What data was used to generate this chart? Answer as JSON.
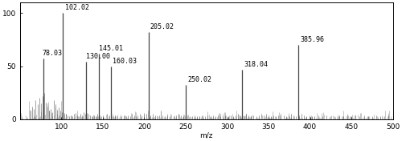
{
  "labeled_peaks": [
    {
      "mz": 78.03,
      "intensity": 57,
      "label": "78.03"
    },
    {
      "mz": 102.02,
      "intensity": 100,
      "label": "102.02"
    },
    {
      "mz": 130.0,
      "intensity": 54,
      "label": "130.00"
    },
    {
      "mz": 145.01,
      "intensity": 62,
      "label": "145.01"
    },
    {
      "mz": 160.03,
      "intensity": 50,
      "label": "160.03"
    },
    {
      "mz": 205.02,
      "intensity": 82,
      "label": "205.02"
    },
    {
      "mz": 250.02,
      "intensity": 32,
      "label": "250.02"
    },
    {
      "mz": 318.04,
      "intensity": 47,
      "label": "318.04"
    },
    {
      "mz": 385.96,
      "intensity": 70,
      "label": "385.96"
    }
  ],
  "small_peaks": [
    {
      "mz": 63,
      "intensity": 8
    },
    {
      "mz": 65,
      "intensity": 12
    },
    {
      "mz": 67,
      "intensity": 10
    },
    {
      "mz": 69,
      "intensity": 18
    },
    {
      "mz": 71,
      "intensity": 14
    },
    {
      "mz": 73,
      "intensity": 20
    },
    {
      "mz": 75,
      "intensity": 15
    },
    {
      "mz": 77,
      "intensity": 22
    },
    {
      "mz": 79,
      "intensity": 25
    },
    {
      "mz": 81,
      "intensity": 16
    },
    {
      "mz": 83,
      "intensity": 12
    },
    {
      "mz": 85,
      "intensity": 8
    },
    {
      "mz": 87,
      "intensity": 10
    },
    {
      "mz": 89,
      "intensity": 7
    },
    {
      "mz": 91,
      "intensity": 18
    },
    {
      "mz": 93,
      "intensity": 14
    },
    {
      "mz": 95,
      "intensity": 9
    },
    {
      "mz": 97,
      "intensity": 11
    },
    {
      "mz": 99,
      "intensity": 8
    },
    {
      "mz": 101,
      "intensity": 7
    },
    {
      "mz": 103,
      "intensity": 6
    },
    {
      "mz": 105,
      "intensity": 5
    },
    {
      "mz": 107,
      "intensity": 4
    },
    {
      "mz": 109,
      "intensity": 3
    },
    {
      "mz": 111,
      "intensity": 4
    },
    {
      "mz": 113,
      "intensity": 3
    },
    {
      "mz": 115,
      "intensity": 5
    },
    {
      "mz": 117,
      "intensity": 6
    },
    {
      "mz": 119,
      "intensity": 4
    },
    {
      "mz": 121,
      "intensity": 3
    },
    {
      "mz": 123,
      "intensity": 5
    },
    {
      "mz": 125,
      "intensity": 4
    },
    {
      "mz": 127,
      "intensity": 7
    },
    {
      "mz": 129,
      "intensity": 5
    },
    {
      "mz": 131,
      "intensity": 6
    },
    {
      "mz": 133,
      "intensity": 5
    },
    {
      "mz": 135,
      "intensity": 4
    },
    {
      "mz": 137,
      "intensity": 3
    },
    {
      "mz": 139,
      "intensity": 4
    },
    {
      "mz": 141,
      "intensity": 3
    },
    {
      "mz": 143,
      "intensity": 5
    },
    {
      "mz": 146,
      "intensity": 4
    },
    {
      "mz": 148,
      "intensity": 3
    },
    {
      "mz": 150,
      "intensity": 4
    },
    {
      "mz": 155,
      "intensity": 5
    },
    {
      "mz": 158,
      "intensity": 4
    },
    {
      "mz": 162,
      "intensity": 3
    },
    {
      "mz": 165,
      "intensity": 4
    },
    {
      "mz": 168,
      "intensity": 3
    },
    {
      "mz": 172,
      "intensity": 3
    },
    {
      "mz": 175,
      "intensity": 4
    },
    {
      "mz": 178,
      "intensity": 3
    },
    {
      "mz": 180,
      "intensity": 4
    },
    {
      "mz": 183,
      "intensity": 3
    },
    {
      "mz": 185,
      "intensity": 5
    },
    {
      "mz": 188,
      "intensity": 4
    },
    {
      "mz": 190,
      "intensity": 3
    },
    {
      "mz": 192,
      "intensity": 4
    },
    {
      "mz": 195,
      "intensity": 5
    },
    {
      "mz": 197,
      "intensity": 4
    },
    {
      "mz": 200,
      "intensity": 6
    },
    {
      "mz": 202,
      "intensity": 5
    },
    {
      "mz": 207,
      "intensity": 4
    },
    {
      "mz": 210,
      "intensity": 5
    },
    {
      "mz": 213,
      "intensity": 4
    },
    {
      "mz": 216,
      "intensity": 3
    },
    {
      "mz": 218,
      "intensity": 4
    },
    {
      "mz": 220,
      "intensity": 8
    },
    {
      "mz": 222,
      "intensity": 4
    },
    {
      "mz": 225,
      "intensity": 3
    },
    {
      "mz": 228,
      "intensity": 4
    },
    {
      "mz": 231,
      "intensity": 3
    },
    {
      "mz": 235,
      "intensity": 3
    },
    {
      "mz": 238,
      "intensity": 4
    },
    {
      "mz": 241,
      "intensity": 5
    },
    {
      "mz": 244,
      "intensity": 4
    },
    {
      "mz": 247,
      "intensity": 3
    },
    {
      "mz": 252,
      "intensity": 4
    },
    {
      "mz": 255,
      "intensity": 3
    },
    {
      "mz": 258,
      "intensity": 3
    },
    {
      "mz": 261,
      "intensity": 4
    },
    {
      "mz": 264,
      "intensity": 3
    },
    {
      "mz": 267,
      "intensity": 3
    },
    {
      "mz": 270,
      "intensity": 4
    },
    {
      "mz": 273,
      "intensity": 3
    },
    {
      "mz": 276,
      "intensity": 4
    },
    {
      "mz": 280,
      "intensity": 3
    },
    {
      "mz": 283,
      "intensity": 4
    },
    {
      "mz": 286,
      "intensity": 3
    },
    {
      "mz": 289,
      "intensity": 4
    },
    {
      "mz": 292,
      "intensity": 3
    },
    {
      "mz": 295,
      "intensity": 3
    },
    {
      "mz": 298,
      "intensity": 4
    },
    {
      "mz": 301,
      "intensity": 3
    },
    {
      "mz": 304,
      "intensity": 4
    },
    {
      "mz": 307,
      "intensity": 3
    },
    {
      "mz": 310,
      "intensity": 4
    },
    {
      "mz": 313,
      "intensity": 5
    },
    {
      "mz": 316,
      "intensity": 4
    },
    {
      "mz": 320,
      "intensity": 4
    },
    {
      "mz": 323,
      "intensity": 5
    },
    {
      "mz": 326,
      "intensity": 4
    },
    {
      "mz": 329,
      "intensity": 3
    },
    {
      "mz": 332,
      "intensity": 4
    },
    {
      "mz": 335,
      "intensity": 3
    },
    {
      "mz": 338,
      "intensity": 4
    },
    {
      "mz": 341,
      "intensity": 5
    },
    {
      "mz": 344,
      "intensity": 4
    },
    {
      "mz": 347,
      "intensity": 5
    },
    {
      "mz": 350,
      "intensity": 4
    },
    {
      "mz": 353,
      "intensity": 3
    },
    {
      "mz": 356,
      "intensity": 4
    },
    {
      "mz": 359,
      "intensity": 3
    },
    {
      "mz": 362,
      "intensity": 4
    },
    {
      "mz": 365,
      "intensity": 5
    },
    {
      "mz": 368,
      "intensity": 4
    },
    {
      "mz": 371,
      "intensity": 3
    },
    {
      "mz": 374,
      "intensity": 4
    },
    {
      "mz": 377,
      "intensity": 5
    },
    {
      "mz": 380,
      "intensity": 4
    },
    {
      "mz": 383,
      "intensity": 3
    },
    {
      "mz": 387,
      "intensity": 4
    },
    {
      "mz": 390,
      "intensity": 5
    },
    {
      "mz": 393,
      "intensity": 4
    },
    {
      "mz": 396,
      "intensity": 3
    },
    {
      "mz": 399,
      "intensity": 4
    },
    {
      "mz": 402,
      "intensity": 3
    },
    {
      "mz": 405,
      "intensity": 3
    },
    {
      "mz": 410,
      "intensity": 4
    },
    {
      "mz": 415,
      "intensity": 3
    },
    {
      "mz": 420,
      "intensity": 4
    },
    {
      "mz": 425,
      "intensity": 3
    },
    {
      "mz": 430,
      "intensity": 3
    },
    {
      "mz": 435,
      "intensity": 4
    },
    {
      "mz": 440,
      "intensity": 3
    },
    {
      "mz": 445,
      "intensity": 4
    },
    {
      "mz": 450,
      "intensity": 3
    },
    {
      "mz": 455,
      "intensity": 4
    },
    {
      "mz": 460,
      "intensity": 3
    },
    {
      "mz": 465,
      "intensity": 4
    },
    {
      "mz": 470,
      "intensity": 3
    },
    {
      "mz": 475,
      "intensity": 3
    },
    {
      "mz": 480,
      "intensity": 4
    },
    {
      "mz": 485,
      "intensity": 3
    },
    {
      "mz": 490,
      "intensity": 3
    },
    {
      "mz": 495,
      "intensity": 4
    }
  ],
  "noise_seed": 42,
  "xlim": [
    50,
    500
  ],
  "ylim": [
    0,
    110
  ],
  "yticks": [
    0,
    50,
    100
  ],
  "xticks": [
    100,
    150,
    200,
    250,
    300,
    350,
    400,
    450,
    500
  ],
  "xlabel": "m/z",
  "bar_color": "#444444",
  "background_color": "#ffffff",
  "figsize": [
    5.0,
    1.76
  ],
  "dpi": 100,
  "label_fontsize": 6,
  "tick_fontsize": 6.5
}
